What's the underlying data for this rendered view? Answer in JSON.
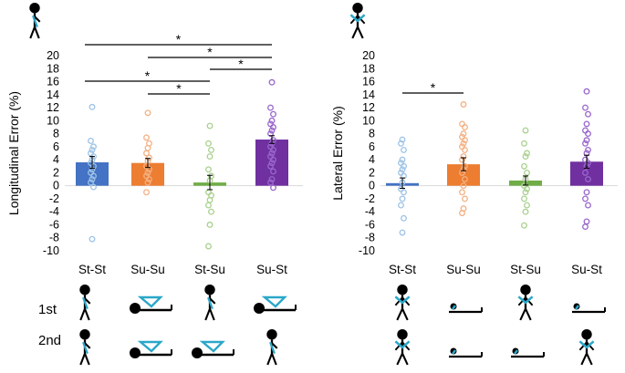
{
  "colors": {
    "blue": "#4472c4",
    "orange": "#ed7d31",
    "green": "#70ad47",
    "purple": "#7030a0",
    "figure": "#000000",
    "accent": "#2aa7c9"
  },
  "row_labels": [
    "1st",
    "2nd"
  ],
  "chart_data": [
    {
      "type": "bar",
      "ylabel": "Longitudinal Error (%)",
      "ylim": [
        -10,
        20
      ],
      "yticks": [
        -10,
        -8,
        -6,
        -4,
        -2,
        0,
        2,
        4,
        6,
        8,
        10,
        12,
        14,
        16,
        18,
        20
      ],
      "categories": [
        "St-St",
        "Su-Su",
        "St-Su",
        "Su-St"
      ],
      "values": [
        3.6,
        3.5,
        0.5,
        7.1
      ],
      "errors": [
        0.9,
        0.7,
        1.1,
        0.6
      ],
      "points": [
        [
          12.1,
          6.9,
          6.0,
          5.5,
          5.0,
          4.5,
          4.0,
          3.5,
          3.0,
          2.5,
          2.0,
          1.5,
          1.0,
          0.5,
          -0.2,
          -8.2
        ],
        [
          11.2,
          7.4,
          6.5,
          5.8,
          5.0,
          4.3,
          3.8,
          3.0,
          2.5,
          2.0,
          1.5,
          1.0,
          0.5,
          -1.0
        ],
        [
          9.2,
          6.5,
          5.5,
          4.5,
          2.5,
          1.5,
          0.8,
          -1.0,
          -1.5,
          -2.2,
          -3.0,
          -4.0,
          -6.0,
          -9.3
        ],
        [
          15.9,
          12.0,
          11.0,
          10.0,
          9.5,
          9.0,
          8.5,
          8.0,
          7.0,
          6.5,
          6.0,
          5.5,
          5.0,
          4.5,
          4.0,
          3.5,
          3.0,
          2.2,
          1.0,
          0.5,
          -0.3
        ]
      ],
      "significance": [
        {
          "from": 0,
          "to": 3,
          "label": "*"
        },
        {
          "from": 1,
          "to": 3,
          "label": "*"
        },
        {
          "from": 2,
          "to": 3,
          "label": "*"
        },
        {
          "from": 0,
          "to": 2,
          "label": "*"
        },
        {
          "from": 1,
          "to": 2,
          "label": "*"
        }
      ]
    },
    {
      "type": "bar",
      "ylabel": "Lateral Error (%)",
      "ylim": [
        -10,
        20
      ],
      "yticks": [
        -10,
        -8,
        -6,
        -4,
        -2,
        0,
        2,
        4,
        6,
        8,
        10,
        12,
        14,
        16,
        18,
        20
      ],
      "categories": [
        "St-St",
        "Su-Su",
        "St-Su",
        "Su-St"
      ],
      "values": [
        0.4,
        3.3,
        0.8,
        3.7
      ],
      "errors": [
        0.8,
        1.0,
        0.7,
        1.0
      ],
      "points": [
        [
          7.1,
          6.5,
          5.5,
          4.0,
          3.5,
          3.0,
          2.5,
          2.0,
          1.5,
          0.5,
          -0.5,
          -1.0,
          -2.0,
          -3.0,
          -5.0,
          -7.2
        ],
        [
          12.5,
          9.5,
          9.0,
          8.0,
          7.5,
          7.0,
          6.5,
          6.0,
          5.5,
          4.5,
          4.0,
          3.0,
          2.5,
          2.0,
          1.0,
          0.0,
          -1.0,
          -2.0,
          -3.5,
          -4.2
        ],
        [
          8.5,
          6.5,
          5.0,
          4.5,
          3.0,
          2.0,
          1.0,
          0.0,
          -0.5,
          -1.0,
          -2.0,
          -3.0,
          -4.0,
          -6.1
        ],
        [
          14.5,
          12.0,
          11.0,
          9.5,
          8.5,
          8.0,
          7.0,
          6.5,
          5.5,
          5.0,
          4.0,
          3.5,
          3.0,
          2.0,
          1.0,
          -1.0,
          -2.0,
          -3.0,
          -5.5,
          -6.3
        ]
      ],
      "significance": [
        {
          "from": 0,
          "to": 1,
          "label": "*"
        }
      ]
    }
  ],
  "figures": {
    "left": {
      "header": "side-standing",
      "row1": [
        "side-standing",
        "side-supine",
        "side-standing",
        "side-supine"
      ],
      "row2": [
        "side-standing",
        "side-supine",
        "side-supine",
        "side-standing"
      ]
    },
    "right": {
      "header": "front-standing",
      "row1": [
        "front-standing",
        "front-supine",
        "front-standing",
        "front-supine"
      ],
      "row2": [
        "front-standing",
        "front-supine",
        "front-supine",
        "front-standing"
      ]
    }
  }
}
